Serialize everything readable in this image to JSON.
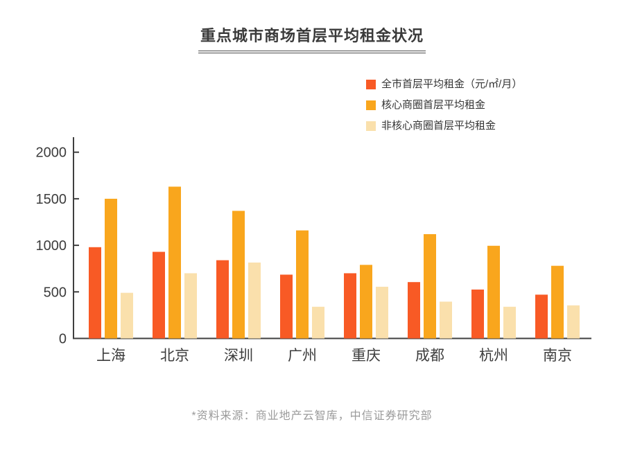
{
  "page": {
    "title": "重点城市商场首层平均租金状况",
    "source_note": "*资料来源：商业地产云智库，中信证券研究部"
  },
  "colors": {
    "series_citywide": "#F85A25",
    "series_core": "#F9A61D",
    "series_non_core": "#FAE0AC",
    "axis": "#3f3f3f",
    "tick_label": "#3c3c3c",
    "title_text": "#3a3a3a",
    "footer_text": "#9a9a9a"
  },
  "chart_data": {
    "type": "bar",
    "title": "重点城市商场首层平均租金状况",
    "xlabel": "",
    "ylabel": "元/㎡/月",
    "categories": [
      "上海",
      "北京",
      "深圳",
      "广州",
      "重庆",
      "成都",
      "杭州",
      "南京"
    ],
    "series": [
      {
        "name": "全市首层平均租金（元/㎡/月）",
        "color": "#F85A25",
        "values": [
          980,
          930,
          840,
          685,
          700,
          605,
          525,
          470
        ]
      },
      {
        "name": "核心商圈首层平均租金",
        "color": "#F9A61D",
        "values": [
          1500,
          1630,
          1370,
          1160,
          790,
          1120,
          995,
          780
        ]
      },
      {
        "name": "非核心商圈首层平均租金",
        "color": "#FAE0AC",
        "values": [
          490,
          700,
          815,
          340,
          555,
          395,
          340,
          355
        ]
      }
    ],
    "ylim": [
      0,
      2160
    ],
    "yticks": [
      0,
      500,
      1000,
      1500,
      2000
    ],
    "grid": false,
    "legend_position": "top-right",
    "source_note": "*资料来源：商业地产云智库，中信证券研究部"
  }
}
